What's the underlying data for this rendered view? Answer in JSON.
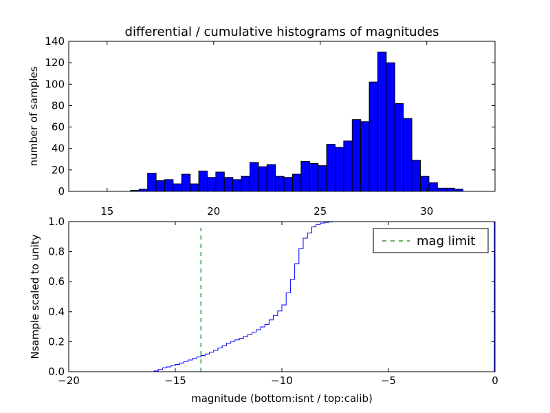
{
  "figure": {
    "background": "#ffffff"
  },
  "chart_data": [
    {
      "type": "bar",
      "panel": "top",
      "title": "differential / cumulative histograms of magnitudes",
      "xlabel": "",
      "ylabel": "number of samples",
      "xlim": [
        13.2,
        33.2
      ],
      "ylim": [
        0,
        140
      ],
      "xticks": [
        15,
        20,
        25,
        30
      ],
      "yticks": [
        0,
        20,
        40,
        60,
        80,
        100,
        120,
        140
      ],
      "xaxis_position": "top-of-bottom-panel",
      "grid": false,
      "bar_color": "#0000ff",
      "bin_width": 0.4,
      "bins": [
        {
          "x": 16.1,
          "y": 1
        },
        {
          "x": 16.5,
          "y": 2
        },
        {
          "x": 16.9,
          "y": 17
        },
        {
          "x": 17.3,
          "y": 10
        },
        {
          "x": 17.7,
          "y": 11
        },
        {
          "x": 18.1,
          "y": 7
        },
        {
          "x": 18.5,
          "y": 16
        },
        {
          "x": 18.9,
          "y": 7
        },
        {
          "x": 19.3,
          "y": 19
        },
        {
          "x": 19.7,
          "y": 13
        },
        {
          "x": 20.1,
          "y": 18
        },
        {
          "x": 20.5,
          "y": 13
        },
        {
          "x": 20.9,
          "y": 11
        },
        {
          "x": 21.3,
          "y": 14
        },
        {
          "x": 21.7,
          "y": 27
        },
        {
          "x": 22.1,
          "y": 23
        },
        {
          "x": 22.5,
          "y": 25
        },
        {
          "x": 22.9,
          "y": 14
        },
        {
          "x": 23.3,
          "y": 13
        },
        {
          "x": 23.7,
          "y": 16
        },
        {
          "x": 24.1,
          "y": 28
        },
        {
          "x": 24.5,
          "y": 26
        },
        {
          "x": 24.9,
          "y": 24
        },
        {
          "x": 25.3,
          "y": 44
        },
        {
          "x": 25.7,
          "y": 41
        },
        {
          "x": 26.1,
          "y": 47
        },
        {
          "x": 26.5,
          "y": 67
        },
        {
          "x": 26.9,
          "y": 65
        },
        {
          "x": 27.3,
          "y": 102
        },
        {
          "x": 27.7,
          "y": 130
        },
        {
          "x": 28.1,
          "y": 120
        },
        {
          "x": 28.5,
          "y": 82
        },
        {
          "x": 28.9,
          "y": 68
        },
        {
          "x": 29.3,
          "y": 29
        },
        {
          "x": 29.7,
          "y": 14
        },
        {
          "x": 30.1,
          "y": 8
        },
        {
          "x": 30.5,
          "y": 3
        },
        {
          "x": 30.9,
          "y": 3
        },
        {
          "x": 31.3,
          "y": 2
        }
      ]
    },
    {
      "type": "line",
      "panel": "bottom",
      "drawstyle": "steps",
      "xlabel": "magnitude (bottom:isnt / top:calib)",
      "ylabel": "Nsample scaled to unity",
      "xlim": [
        -20,
        0
      ],
      "ylim": [
        0,
        1
      ],
      "xticks": [
        -20,
        -15,
        -10,
        -5,
        0
      ],
      "yticks": [
        0.0,
        0.2,
        0.4,
        0.6,
        0.8,
        1.0
      ],
      "grid": false,
      "legend": {
        "placement": "top-right",
        "entries": [
          "mag limit"
        ]
      },
      "series": [
        {
          "color": "#0000ff",
          "x": [
            -20,
            -16.0,
            -15.8,
            -15.6,
            -15.4,
            -15.2,
            -15.0,
            -14.8,
            -14.6,
            -14.4,
            -14.2,
            -14.0,
            -13.8,
            -13.6,
            -13.4,
            -13.2,
            -13.0,
            -12.8,
            -12.6,
            -12.4,
            -12.2,
            -12.0,
            -11.8,
            -11.6,
            -11.4,
            -11.2,
            -11.0,
            -10.8,
            -10.6,
            -10.4,
            -10.2,
            -10.0,
            -9.8,
            -9.6,
            -9.4,
            -9.2,
            -9.0,
            -8.8,
            -8.6,
            -8.4,
            -8.2,
            -8.0,
            -7.8,
            -7.6,
            -7.4,
            -7.2,
            -7.0,
            -0.05
          ],
          "y": [
            0.0,
            0.005,
            0.015,
            0.025,
            0.032,
            0.04,
            0.048,
            0.058,
            0.068,
            0.078,
            0.088,
            0.098,
            0.108,
            0.118,
            0.13,
            0.143,
            0.158,
            0.174,
            0.19,
            0.202,
            0.212,
            0.222,
            0.234,
            0.248,
            0.264,
            0.28,
            0.298,
            0.315,
            0.345,
            0.375,
            0.405,
            0.445,
            0.525,
            0.615,
            0.72,
            0.82,
            0.89,
            0.925,
            0.965,
            0.98,
            0.99,
            0.995,
            0.998,
            1.0,
            1.0,
            1.0,
            1.0,
            1.0
          ]
        },
        {
          "name": "mag limit",
          "color": "#008000",
          "linestyle": "dashed",
          "x": [
            -13.8,
            -13.8
          ],
          "y": [
            0.0,
            0.96
          ]
        }
      ]
    }
  ]
}
